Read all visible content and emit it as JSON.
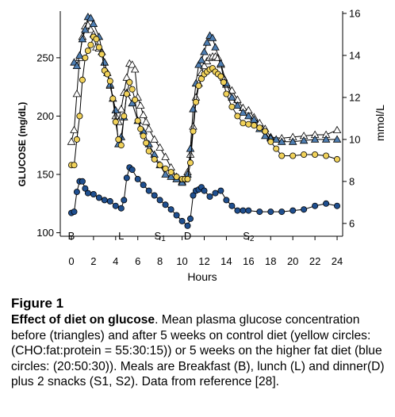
{
  "chart_data": {
    "type": "line",
    "ylabel": "GLUCOSE (mg/dL)",
    "y2label": "mmol/L",
    "xlabel": "Hours",
    "xlim": [
      -1,
      24.5
    ],
    "ylim": [
      97,
      290
    ],
    "y2lim": [
      5.39,
      16.11
    ],
    "x_ticks": [
      0,
      2,
      4,
      6,
      8,
      10,
      12,
      14,
      16,
      18,
      20,
      22,
      24
    ],
    "y_ticks": [
      100,
      150,
      200,
      250
    ],
    "y2_ticks": [
      6,
      8,
      10,
      12,
      14,
      16
    ],
    "meals": [
      {
        "label": "B",
        "x": 0
      },
      {
        "label": "L",
        "x": 4.5
      },
      {
        "label": "S1",
        "x": 8
      },
      {
        "label": "D",
        "x": 10.5
      },
      {
        "label": "S2",
        "x": 16
      }
    ],
    "series": [
      {
        "marker": "triangle",
        "color": "#ffffff",
        "x": [
          0,
          0.25,
          0.5,
          0.75,
          1,
          1.25,
          1.5,
          1.75,
          2,
          2.25,
          2.5,
          2.75,
          3,
          3.25,
          3.5,
          3.75,
          4,
          4.25,
          4.5,
          4.75,
          5,
          5.25,
          5.5,
          5.75,
          6,
          6.25,
          6.5,
          6.75,
          7,
          7.5,
          8,
          8.5,
          9,
          9.5,
          10,
          10.25,
          10.5,
          10.75,
          11,
          11.25,
          11.5,
          11.75,
          12,
          12.25,
          12.5,
          12.75,
          13,
          13.25,
          13.5,
          13.75,
          14,
          14.5,
          15,
          15.5,
          16,
          16.5,
          17,
          17.5,
          18,
          19,
          20,
          21,
          22,
          23,
          24
        ],
        "y": [
          178,
          188,
          219,
          250,
          268,
          277,
          278,
          274,
          270,
          259,
          258,
          255,
          246,
          237,
          226,
          215,
          200,
          195,
          206,
          220,
          233,
          245,
          244,
          240,
          216,
          209,
          201,
          195,
          189,
          180,
          173,
          165,
          156,
          148,
          144,
          146,
          152,
          167,
          191,
          216,
          228,
          237,
          243,
          247,
          250,
          251,
          251,
          250,
          244,
          233,
          227,
          222,
          214,
          207,
          205,
          199,
          194,
          189,
          182,
          181,
          182,
          183,
          184,
          184,
          188
        ]
      },
      {
        "marker": "triangle",
        "color": "#4f7fb3",
        "x": [
          0.25,
          0.5,
          0.75,
          1,
          1.25,
          1.5,
          1.75,
          2,
          2.5,
          3,
          3.5,
          4,
          4.25,
          4.5,
          4.75,
          5,
          5.5,
          6,
          6.5,
          7,
          7.5,
          8,
          8.5,
          9,
          9.5,
          10,
          10.25,
          10.5,
          10.75,
          11,
          11.25,
          11.5,
          11.75,
          12,
          12.25,
          12.5,
          12.75,
          13,
          13.5,
          14,
          14.5,
          15,
          15.5,
          16,
          16.5,
          17,
          17.5,
          18,
          18.5,
          19,
          20,
          21,
          22,
          23,
          24
        ],
        "y": [
          246,
          243,
          252,
          266,
          274,
          285,
          284,
          279,
          268,
          246,
          227,
          205,
          176,
          182,
          199,
          220,
          211,
          196,
          187,
          176,
          167,
          158,
          150,
          148,
          146,
          143,
          146,
          150,
          172,
          206,
          228,
          244,
          248,
          255,
          263,
          269,
          267,
          259,
          245,
          228,
          216,
          209,
          203,
          200,
          197,
          189,
          183,
          181,
          180,
          178,
          178,
          179,
          180,
          180,
          180
        ]
      },
      {
        "marker": "circle",
        "color": "#f1d25a",
        "x": [
          0,
          0.25,
          0.5,
          0.75,
          1,
          1.25,
          1.5,
          1.75,
          2,
          2.25,
          2.5,
          2.75,
          3,
          3.25,
          3.5,
          3.75,
          4,
          4.25,
          4.5,
          4.75,
          5,
          5.25,
          5.5,
          5.75,
          6,
          6.25,
          6.5,
          6.75,
          7,
          7.5,
          8,
          8.5,
          9,
          9.5,
          10,
          10.25,
          10.5,
          10.75,
          11,
          11.25,
          11.5,
          11.75,
          12,
          12.25,
          12.5,
          12.75,
          13,
          13.25,
          13.5,
          13.75,
          14,
          14.5,
          15,
          15.5,
          16,
          16.5,
          17,
          17.5,
          18,
          18.5,
          19,
          20,
          21,
          22,
          23,
          24
        ],
        "y": [
          158,
          158,
          180,
          200,
          231,
          250,
          256,
          261,
          268,
          266,
          259,
          253,
          239,
          236,
          230,
          215,
          195,
          180,
          175,
          200,
          219,
          229,
          223,
          214,
          196,
          189,
          183,
          177,
          170,
          163,
          158,
          155,
          152,
          148,
          146,
          146,
          146,
          160,
          187,
          212,
          226,
          232,
          236,
          238,
          240,
          241,
          238,
          236,
          234,
          229,
          219,
          208,
          200,
          194,
          193,
          192,
          190,
          187,
          178,
          172,
          166,
          166,
          167,
          167,
          166,
          163
        ]
      },
      {
        "marker": "circle",
        "color": "#1f4f8f",
        "x": [
          0,
          0.25,
          0.5,
          0.75,
          1,
          1.25,
          1.5,
          2,
          2.5,
          3,
          3.5,
          4,
          4.5,
          4.75,
          5,
          5.25,
          5.5,
          6,
          6.5,
          7,
          7.5,
          8,
          8.5,
          9,
          9.5,
          10,
          10.5,
          10.75,
          11,
          11.25,
          11.5,
          11.75,
          12,
          12.5,
          13,
          13.5,
          14,
          14.5,
          15,
          15.5,
          16,
          17,
          18,
          19,
          20,
          21,
          22,
          23,
          24
        ],
        "y": [
          117,
          118,
          135,
          144,
          144,
          138,
          134,
          133,
          130,
          128,
          127,
          123,
          121,
          128,
          147,
          156,
          154,
          146,
          141,
          136,
          132,
          128,
          124,
          120,
          115,
          110,
          106,
          112,
          132,
          136,
          137,
          139,
          136,
          131,
          134,
          136,
          128,
          123,
          119,
          119,
          119,
          118,
          118,
          118,
          119,
          120,
          123,
          125,
          123
        ]
      }
    ]
  },
  "caption": {
    "figure_label": "Figure 1",
    "title": "Effect of diet on glucose",
    "body": ". Mean plasma glucose concentration before (triangles) and after 5 weeks on control diet (yellow circles: (CHO:fat:protein = 55:30:15)) or 5 weeks on the higher fat diet (blue circles: (20:50:30)). Meals are Breakfast (B), lunch (L) and dinner(D) plus 2 snacks (S1, S2). Data from reference [28]."
  }
}
